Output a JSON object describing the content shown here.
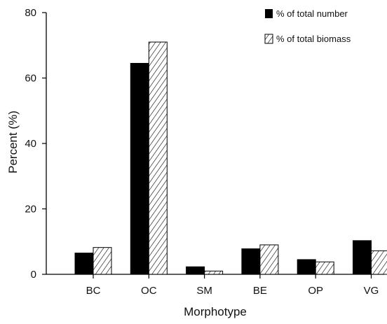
{
  "chart_data": {
    "type": "bar",
    "title": "",
    "xlabel": "Morphotype",
    "ylabel": "Percent  (%)",
    "categories": [
      "BC",
      "OC",
      "SM",
      "BE",
      "OP",
      "VG"
    ],
    "series": [
      {
        "name": "% of total number",
        "values": [
          6.5,
          64.5,
          2.3,
          7.8,
          4.5,
          10.3
        ],
        "fill": "solid",
        "color": "#000000"
      },
      {
        "name": "% of total biomass",
        "values": [
          8.2,
          71.0,
          1.0,
          9.0,
          3.8,
          7.2
        ],
        "fill": "hatched",
        "color": "#000000"
      }
    ],
    "ylim": [
      0,
      80
    ],
    "yticks": [
      0,
      20,
      40,
      60,
      80
    ],
    "grid": false,
    "legend_position": "top-right"
  }
}
